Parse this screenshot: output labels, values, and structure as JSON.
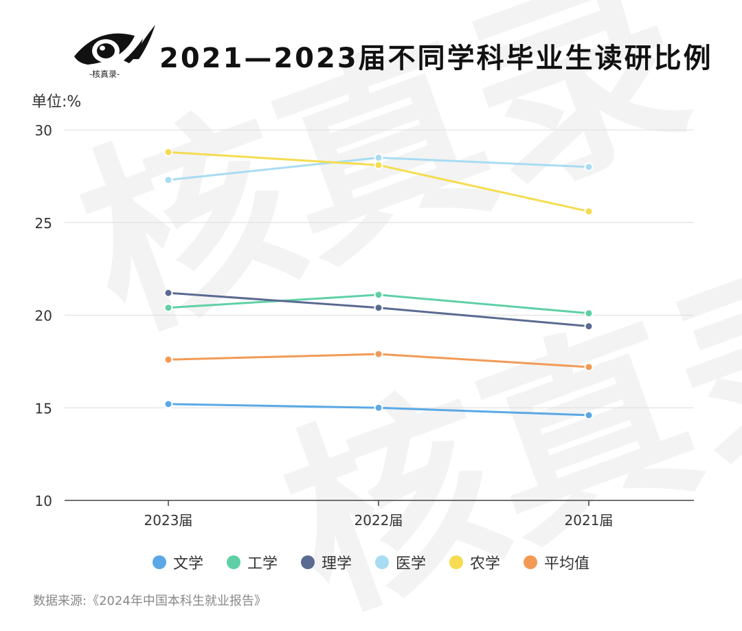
{
  "header": {
    "title": "2021—2023届不同学科毕业生读研比例",
    "logo_caption": "-核真录-"
  },
  "watermark": {
    "text": "核真录"
  },
  "chart_data": {
    "type": "line",
    "categories": [
      "2023届",
      "2022届",
      "2021届"
    ],
    "unit_label": "单位:%",
    "yticks": [
      "30",
      "25",
      "20",
      "15",
      "10"
    ],
    "ylim": [
      10,
      30
    ],
    "grid": true,
    "legend_position": "bottom",
    "series": [
      {
        "name": "文学",
        "color": "#5aa8e6",
        "values": [
          15.2,
          15.0,
          14.6
        ]
      },
      {
        "name": "工学",
        "color": "#5fd0a6",
        "values": [
          20.4,
          21.1,
          20.1
        ]
      },
      {
        "name": "理学",
        "color": "#5a6a90",
        "values": [
          21.2,
          20.4,
          19.4
        ]
      },
      {
        "name": "医学",
        "color": "#a8dcf2",
        "values": [
          27.3,
          28.5,
          28.0
        ]
      },
      {
        "name": "农学",
        "color": "#f5dc50",
        "values": [
          28.8,
          28.1,
          25.6
        ]
      },
      {
        "name": "平均值",
        "color": "#f29a55",
        "values": [
          17.6,
          17.9,
          17.2
        ]
      }
    ]
  },
  "footer": {
    "source": "数据来源:《2024年中国本科生就业报告》"
  }
}
